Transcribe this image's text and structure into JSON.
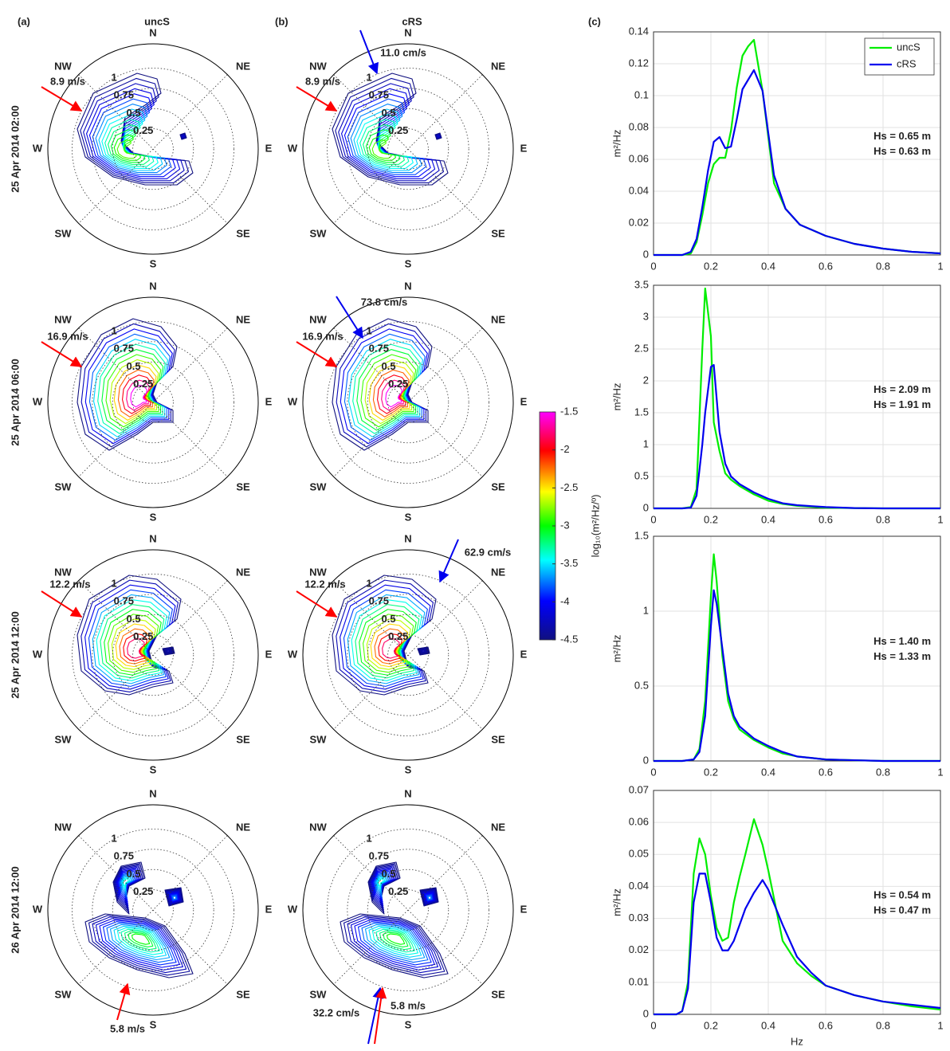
{
  "chart_data": [
    {
      "type": "polar",
      "panel_label": "(a)",
      "title": "uncS",
      "row_label": "25 Apr 2014 02:00",
      "directions": [
        "N",
        "NE",
        "E",
        "SE",
        "S",
        "SW",
        "W",
        "NW"
      ],
      "rlim": [
        0,
        1.3
      ],
      "rticks": [
        0.25,
        0.5,
        0.75,
        1
      ],
      "annotations": [
        {
          "text": "8.9 m/s",
          "color": "#ff0000"
        }
      ]
    },
    {
      "type": "polar",
      "panel_label": "(b)",
      "title": "cRS",
      "directions": [
        "N",
        "NE",
        "E",
        "SE",
        "S",
        "SW",
        "W",
        "NW"
      ],
      "rlim": [
        0,
        1.3
      ],
      "rticks": [
        0.25,
        0.5,
        0.75,
        1
      ],
      "annotations": [
        {
          "text": "8.9 m/s",
          "color": "#ff0000"
        },
        {
          "text": "11.0 cm/s",
          "color": "#0000ee"
        }
      ]
    },
    {
      "type": "polar",
      "row_label": "25 Apr 2014 06:00",
      "directions": [
        "N",
        "NE",
        "E",
        "SE",
        "S",
        "SW",
        "W",
        "NW"
      ],
      "rlim": [
        0,
        1.3
      ],
      "rticks": [
        0.25,
        0.5,
        0.75,
        1
      ],
      "annotations": [
        {
          "text": "16.9 m/s",
          "color": "#ff0000"
        }
      ]
    },
    {
      "type": "polar",
      "directions": [
        "N",
        "NE",
        "E",
        "SE",
        "S",
        "SW",
        "W",
        "NW"
      ],
      "rlim": [
        0,
        1.3
      ],
      "rticks": [
        0.25,
        0.5,
        0.75,
        1
      ],
      "annotations": [
        {
          "text": "16.9 m/s",
          "color": "#ff0000"
        },
        {
          "text": "73.8 cm/s",
          "color": "#0000ee"
        }
      ]
    },
    {
      "type": "polar",
      "row_label": "25 Apr 2014 12:00",
      "directions": [
        "N",
        "NE",
        "E",
        "SE",
        "S",
        "SW",
        "W",
        "NW"
      ],
      "rlim": [
        0,
        1.3
      ],
      "rticks": [
        0.25,
        0.5,
        0.75,
        1
      ],
      "annotations": [
        {
          "text": "12.2 m/s",
          "color": "#ff0000"
        }
      ]
    },
    {
      "type": "polar",
      "directions": [
        "N",
        "NE",
        "E",
        "SE",
        "S",
        "SW",
        "W",
        "NW"
      ],
      "rlim": [
        0,
        1.3
      ],
      "rticks": [
        0.25,
        0.5,
        0.75,
        1
      ],
      "annotations": [
        {
          "text": "12.2 m/s",
          "color": "#ff0000"
        },
        {
          "text": "62.9 cm/s",
          "color": "#0000ee"
        }
      ]
    },
    {
      "type": "polar",
      "row_label": "26 Apr 2014 12:00",
      "directions": [
        "N",
        "NE",
        "E",
        "SE",
        "S",
        "SW",
        "W",
        "NW"
      ],
      "rlim": [
        0,
        1.3
      ],
      "rticks": [
        0.25,
        0.5,
        0.75,
        1
      ],
      "annotations": [
        {
          "text": "5.8 m/s",
          "color": "#ff0000"
        }
      ]
    },
    {
      "type": "polar",
      "directions": [
        "N",
        "NE",
        "E",
        "SE",
        "S",
        "SW",
        "W",
        "NW"
      ],
      "rlim": [
        0,
        1.3
      ],
      "rticks": [
        0.25,
        0.5,
        0.75,
        1
      ],
      "annotations": [
        {
          "text": "32.2 cm/s",
          "color": "#0000ee"
        },
        {
          "text": "5.8 m/s",
          "color": "#ff0000"
        }
      ]
    },
    {
      "type": "colorbar",
      "clim": [
        -4.5,
        -1.5
      ],
      "ticks": [
        -1.5,
        -2,
        -2.5,
        -3,
        -3.5,
        -4,
        -4.5
      ],
      "label": "log₁₀(m²/Hz/º)"
    },
    {
      "type": "line",
      "panel_label": "(c)",
      "ylabel": "m²/Hz",
      "grid": true,
      "legend": "upper right",
      "x": [
        0,
        0.1,
        0.13,
        0.15,
        0.17,
        0.19,
        0.21,
        0.23,
        0.25,
        0.27,
        0.29,
        0.31,
        0.33,
        0.35,
        0.38,
        0.42,
        0.46,
        0.51,
        0.6,
        0.7,
        0.8,
        0.9,
        1
      ],
      "series": [
        {
          "name": "uncS",
          "color": "#00ee00",
          "values": [
            0,
            0,
            0.001,
            0.008,
            0.025,
            0.045,
            0.057,
            0.061,
            0.061,
            0.078,
            0.105,
            0.125,
            0.131,
            0.135,
            0.103,
            0.045,
            0.029,
            0.019,
            0.012,
            0.007,
            0.004,
            0.002,
            0.001
          ]
        },
        {
          "name": "cRS",
          "color": "#0000ee",
          "values": [
            0,
            0,
            0.002,
            0.01,
            0.03,
            0.053,
            0.071,
            0.074,
            0.067,
            0.068,
            0.085,
            0.104,
            0.11,
            0.116,
            0.103,
            0.05,
            0.029,
            0.019,
            0.012,
            0.007,
            0.004,
            0.002,
            0.001
          ]
        }
      ],
      "xlim": [
        0,
        1
      ],
      "xticks": [
        0,
        0.2,
        0.4,
        0.6,
        0.8,
        1
      ],
      "ylim": [
        0,
        0.14
      ],
      "yticks": [
        0,
        0.02,
        0.04,
        0.06,
        0.08,
        0.1,
        0.12,
        0.14
      ],
      "annotations": [
        {
          "text": "Hs = 0.65 m",
          "color": "#00dd00"
        },
        {
          "text": "Hs = 0.63 m",
          "color": "#0000ee"
        }
      ]
    },
    {
      "type": "line",
      "ylabel": "m²/Hz",
      "grid": true,
      "x": [
        0,
        0.1,
        0.13,
        0.15,
        0.17,
        0.18,
        0.2,
        0.21,
        0.23,
        0.25,
        0.27,
        0.3,
        0.35,
        0.4,
        0.45,
        0.5,
        0.6,
        0.7,
        0.8,
        0.9,
        1
      ],
      "series": [
        {
          "color": "#00ee00",
          "values": [
            0,
            0,
            0.02,
            0.3,
            2.5,
            3.45,
            2.7,
            1.35,
            0.9,
            0.55,
            0.45,
            0.35,
            0.22,
            0.12,
            0.07,
            0.04,
            0.01,
            0.005,
            0,
            0,
            0
          ]
        },
        {
          "color": "#0000ee",
          "values": [
            0,
            0,
            0.01,
            0.2,
            1.0,
            1.5,
            2.22,
            2.25,
            1.2,
            0.7,
            0.5,
            0.38,
            0.25,
            0.15,
            0.08,
            0.05,
            0.02,
            0.005,
            0,
            0,
            0
          ]
        }
      ],
      "xlim": [
        0,
        1
      ],
      "xticks": [
        0,
        0.2,
        0.4,
        0.6,
        0.8,
        1
      ],
      "ylim": [
        0,
        3.5
      ],
      "yticks": [
        0,
        0.5,
        1,
        1.5,
        2,
        2.5,
        3,
        3.5
      ],
      "annotations": [
        {
          "text": "Hs = 2.09 m",
          "color": "#00dd00"
        },
        {
          "text": "Hs = 1.91 m",
          "color": "#0000ee"
        }
      ]
    },
    {
      "type": "line",
      "ylabel": "m²/Hz",
      "grid": true,
      "x": [
        0,
        0.1,
        0.14,
        0.16,
        0.18,
        0.2,
        0.21,
        0.22,
        0.24,
        0.26,
        0.28,
        0.3,
        0.35,
        0.4,
        0.45,
        0.5,
        0.6,
        0.7,
        0.8,
        0.9,
        1
      ],
      "series": [
        {
          "color": "#00ee00",
          "values": [
            0,
            0,
            0.01,
            0.08,
            0.4,
            1.1,
            1.38,
            1.2,
            0.7,
            0.4,
            0.28,
            0.21,
            0.14,
            0.09,
            0.05,
            0.03,
            0.01,
            0.005,
            0,
            0,
            0
          ]
        },
        {
          "color": "#0000ee",
          "values": [
            0,
            0,
            0.01,
            0.06,
            0.3,
            0.9,
            1.14,
            1.05,
            0.75,
            0.45,
            0.3,
            0.23,
            0.15,
            0.1,
            0.06,
            0.03,
            0.01,
            0.005,
            0,
            0,
            0
          ]
        }
      ],
      "xlim": [
        0,
        1
      ],
      "xticks": [
        0,
        0.2,
        0.4,
        0.6,
        0.8,
        1
      ],
      "ylim": [
        0,
        1.5
      ],
      "yticks": [
        0,
        0.5,
        1,
        1.5
      ],
      "annotations": [
        {
          "text": "Hs = 1.40 m",
          "color": "#00dd00"
        },
        {
          "text": "Hs = 1.33 m",
          "color": "#0000ee"
        }
      ]
    },
    {
      "type": "line",
      "ylabel": "m²/Hz",
      "xlabel": "Hz",
      "grid": true,
      "x": [
        0,
        0.08,
        0.1,
        0.12,
        0.14,
        0.16,
        0.18,
        0.2,
        0.22,
        0.24,
        0.26,
        0.28,
        0.3,
        0.32,
        0.35,
        0.38,
        0.4,
        0.45,
        0.5,
        0.55,
        0.6,
        0.7,
        0.8,
        0.9,
        1
      ],
      "series": [
        {
          "color": "#00ee00",
          "values": [
            0,
            0,
            0.001,
            0.01,
            0.044,
            0.055,
            0.05,
            0.037,
            0.027,
            0.023,
            0.024,
            0.035,
            0.043,
            0.05,
            0.061,
            0.053,
            0.045,
            0.023,
            0.016,
            0.012,
            0.009,
            0.006,
            0.004,
            0.0025,
            0.0015
          ]
        },
        {
          "color": "#0000ee",
          "values": [
            0,
            0,
            0.001,
            0.008,
            0.035,
            0.044,
            0.044,
            0.035,
            0.024,
            0.02,
            0.02,
            0.023,
            0.028,
            0.033,
            0.038,
            0.042,
            0.039,
            0.028,
            0.018,
            0.013,
            0.009,
            0.006,
            0.004,
            0.003,
            0.002
          ]
        }
      ],
      "xlim": [
        0,
        1
      ],
      "xticks": [
        0,
        0.2,
        0.4,
        0.6,
        0.8,
        1
      ],
      "ylim": [
        0,
        0.07
      ],
      "yticks": [
        0,
        0.01,
        0.02,
        0.03,
        0.04,
        0.05,
        0.06,
        0.07
      ],
      "annotations": [
        {
          "text": "Hs = 0.54 m",
          "color": "#00dd00"
        },
        {
          "text": "Hs = 0.47 m",
          "color": "#0000ee"
        }
      ]
    }
  ]
}
